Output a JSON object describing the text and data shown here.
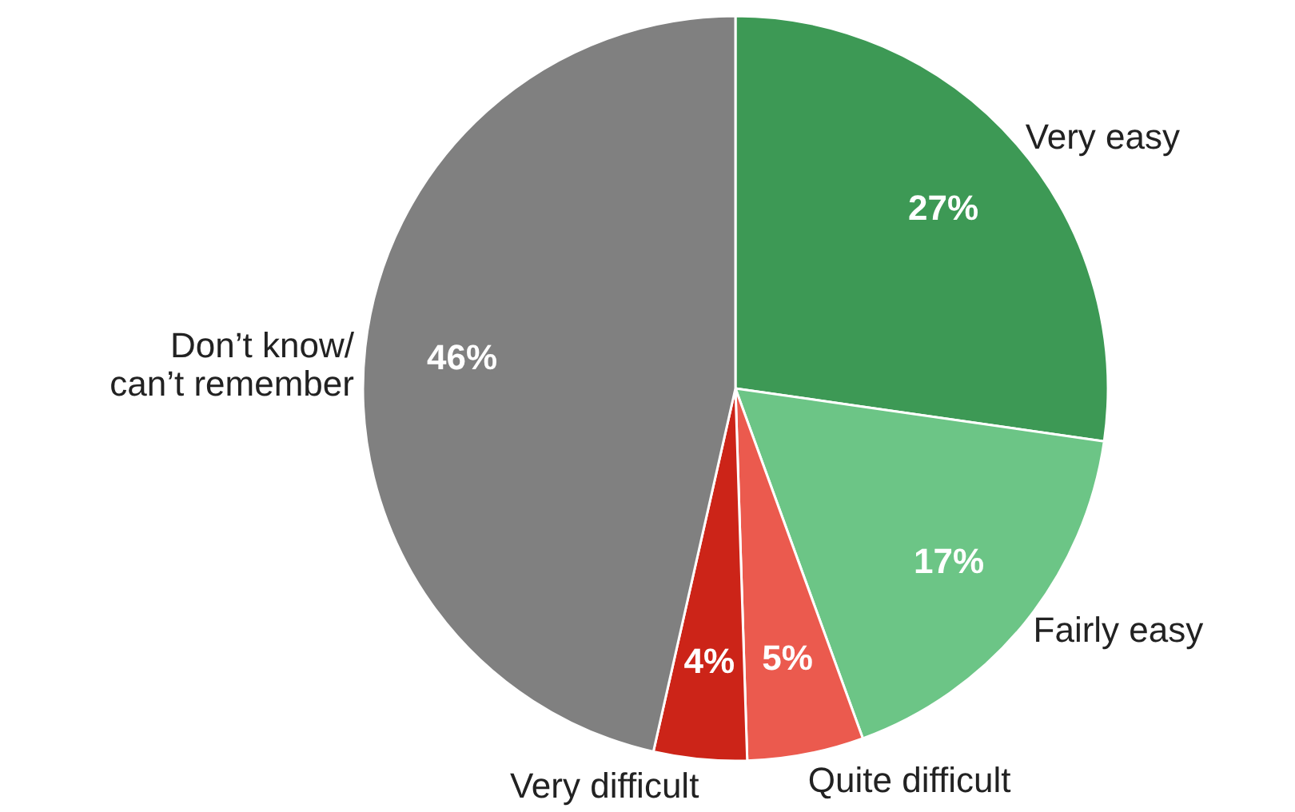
{
  "chart_data": {
    "type": "pie",
    "categories": [
      "Very easy",
      "Fairly easy",
      "Quite difficult",
      "Very difficult",
      "Don’t know/\ncan’t remember"
    ],
    "values": [
      27,
      17,
      5,
      4,
      46
    ],
    "colors": [
      "#3d9955",
      "#6cc586",
      "#eb5a4e",
      "#cc2418",
      "#808080"
    ],
    "value_labels": [
      "27%",
      "17%",
      "5%",
      "4%",
      "46%"
    ]
  }
}
